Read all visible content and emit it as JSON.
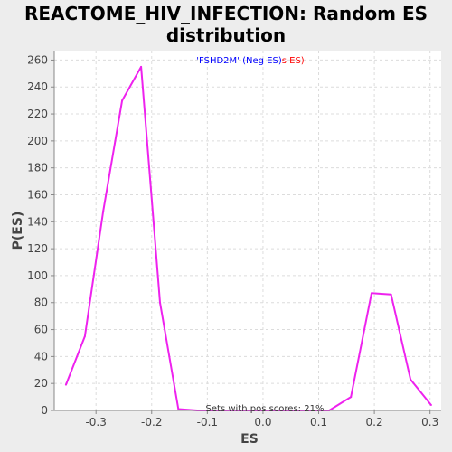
{
  "chart_data": {
    "type": "line",
    "title_line1": "REACTOME_HIV_INFECTION: Random ES",
    "title_line2": "distribution",
    "xlabel": "ES",
    "ylabel": "P(ES)",
    "xlim": [
      -0.375,
      0.32
    ],
    "ylim": [
      0,
      267
    ],
    "xticks": [
      -0.3,
      -0.2,
      -0.1,
      0.0,
      0.1,
      0.2,
      0.3
    ],
    "xtick_labels": [
      "-0.3",
      "-0.2",
      "-0.1",
      "0.0",
      "0.1",
      "0.2",
      "0.3"
    ],
    "yticks": [
      0,
      20,
      40,
      60,
      80,
      100,
      120,
      140,
      160,
      180,
      200,
      220,
      240,
      260
    ],
    "ytick_labels": [
      "0",
      "20",
      "40",
      "60",
      "80",
      "100",
      "120",
      "140",
      "160",
      "180",
      "200",
      "220",
      "240",
      "260"
    ],
    "grid": true,
    "series": [
      {
        "color": "#ee22ee",
        "x": [
          -0.354,
          -0.32,
          -0.287,
          -0.253,
          -0.219,
          -0.185,
          -0.152,
          -0.118,
          -0.084,
          -0.05,
          -0.017,
          0.017,
          0.051,
          0.085,
          0.119,
          0.158,
          0.195,
          0.23,
          0.265,
          0.302
        ],
        "y": [
          19,
          55,
          148,
          230,
          255,
          80,
          1,
          0,
          0,
          0,
          0,
          0,
          0,
          0,
          0,
          10,
          87,
          86,
          23,
          4
        ]
      }
    ],
    "annotations": {
      "gene_prefix": "'FSHD2M' (",
      "neg_es": "Neg ES",
      "paren_close": ")",
      "pos_es": "s ES)",
      "pos_scores": "Sets with pos scores: 21%"
    },
    "colors": {
      "background": "#ededed",
      "plot_background": "#ffffff",
      "grid": "#dcdcdc",
      "line": "#ee22ee",
      "neg_text": "#0000ff",
      "pos_text": "#ff0000",
      "text": "#444444"
    }
  }
}
